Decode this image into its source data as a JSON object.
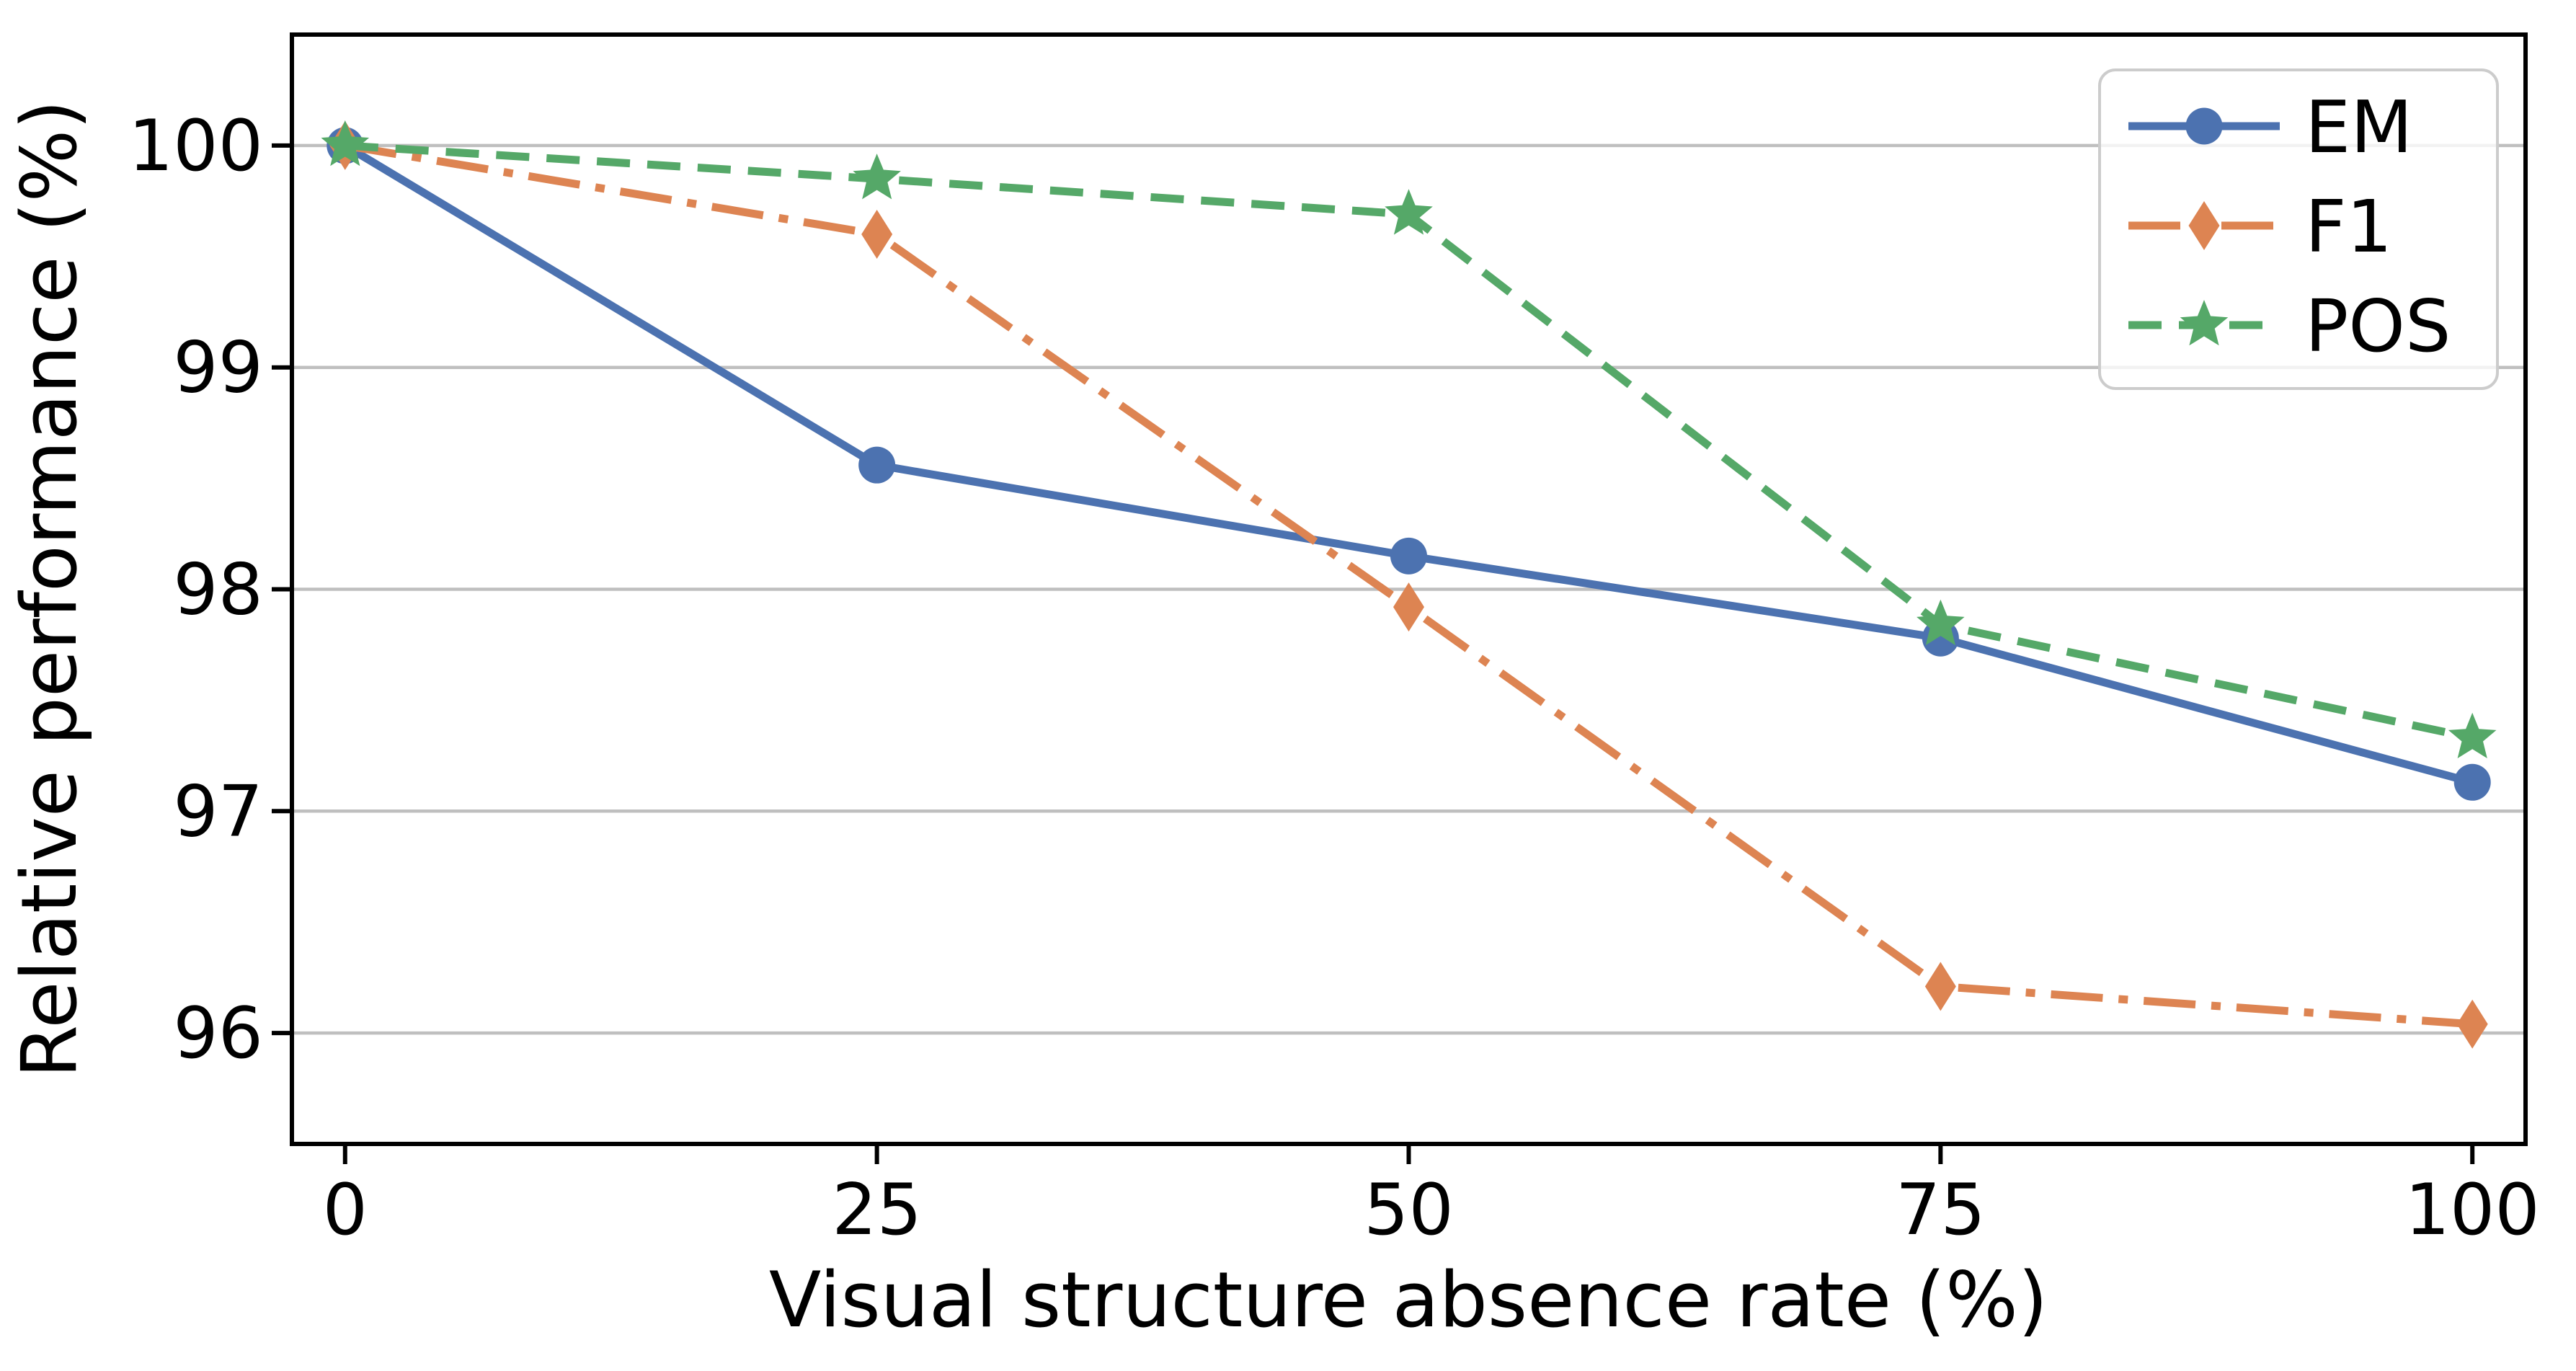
{
  "chart_data": {
    "type": "line",
    "title": "",
    "xlabel": "Visual structure absence rate (%)",
    "ylabel": "Relative performance (%)",
    "x": [
      0,
      25,
      50,
      75,
      100
    ],
    "xticks": [
      "0",
      "25",
      "50",
      "75",
      "100"
    ],
    "yticks": [
      "100",
      "99",
      "98",
      "97",
      "96"
    ],
    "ytick_values": [
      100,
      99,
      98,
      97,
      96
    ],
    "xlim": [
      -2.5,
      102.5
    ],
    "ylim": [
      95.5,
      100.5
    ],
    "grid": "horizontal-only",
    "legend_position": "upper-right",
    "series": [
      {
        "name": "EM",
        "color": "#4C72B0",
        "line_style": "solid",
        "marker": "circle",
        "values": [
          100,
          98.56,
          98.15,
          97.78,
          97.13
        ]
      },
      {
        "name": "F1",
        "color": "#DD8452",
        "line_style": "dashdot",
        "marker": "diamond",
        "values": [
          100,
          99.6,
          97.92,
          96.21,
          96.04
        ]
      },
      {
        "name": "POS",
        "color": "#55A868",
        "line_style": "dashed",
        "marker": "star",
        "values": [
          100,
          99.85,
          99.69,
          97.84,
          97.33
        ]
      }
    ],
    "colors": {
      "grid": "#bfbfbf",
      "axis": "#000000",
      "text": "#000000",
      "legend_border": "#cccccc",
      "background": "#ffffff"
    }
  }
}
